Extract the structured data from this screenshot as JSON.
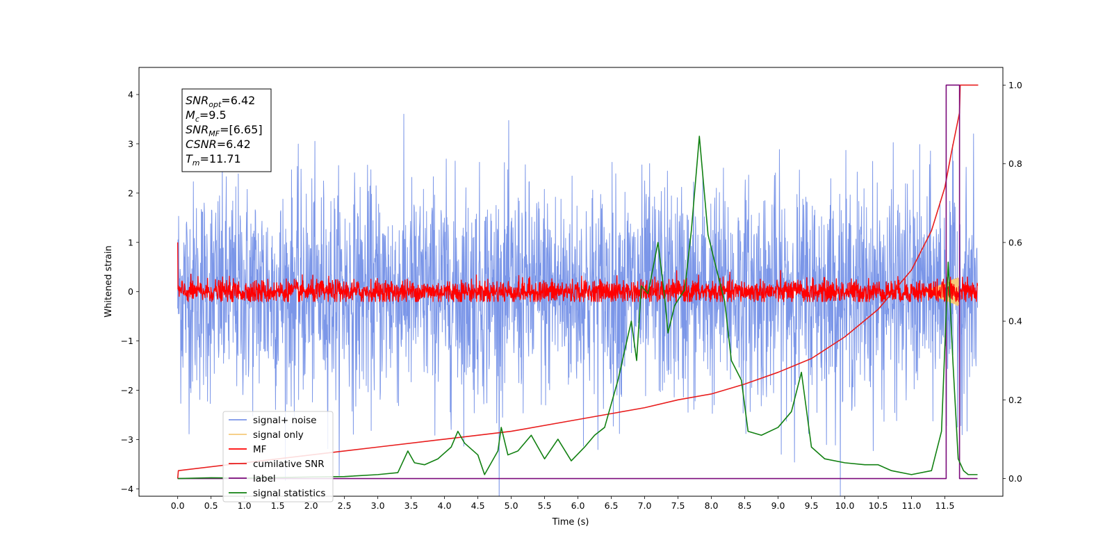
{
  "chart_data": {
    "type": "line",
    "xlabel": "Time (s)",
    "ylabel": "Whitened strain",
    "xlim": [
      -0.58,
      12.37
    ],
    "ylim": [
      -4.15,
      4.55
    ],
    "y2lim": [
      -0.045,
      1.045
    ],
    "x_ticks": [
      "0.0",
      "0.5",
      "1.0",
      "1.5",
      "2.0",
      "2.5",
      "3.0",
      "3.5",
      "4.0",
      "4.5",
      "5.0",
      "5.5",
      "6.0",
      "6.5",
      "7.0",
      "7.5",
      "8.0",
      "8.5",
      "9.0",
      "9.5",
      "10.0",
      "10.5",
      "11.0",
      "11.5"
    ],
    "y_ticks": [
      "4",
      "3",
      "2",
      "1",
      "0",
      "−1",
      "−2",
      "−3",
      "−4"
    ],
    "y2_ticks": [
      "1.0",
      "0.8",
      "0.6",
      "0.4",
      "0.2",
      "0.0"
    ],
    "legend": {
      "placement": "lower-left",
      "entries": [
        {
          "label": "signal+ noise",
          "color": "#7b96e8"
        },
        {
          "label": "signal only",
          "color": "#f5c97a"
        },
        {
          "label": "MF",
          "color": "#ff0000"
        },
        {
          "label": "cumilative SNR",
          "color": "#e81c1c"
        },
        {
          "label": "label",
          "color": "#7b0a7b"
        },
        {
          "label": "signal statistics",
          "color": "#118011"
        }
      ]
    },
    "annotation": {
      "lines": [
        {
          "main": "SNR",
          "sub": "opt",
          "rest": "=6.42"
        },
        {
          "main": "M",
          "sub": "c",
          "rest": "=9.5"
        },
        {
          "main": "SNR",
          "sub": "MF",
          "rest": "=[6.65]"
        },
        {
          "main": "CSNR",
          "sub": "",
          "rest": "=6.42"
        },
        {
          "main": "T",
          "sub": "m",
          "rest": "=11.71"
        }
      ]
    },
    "series": [
      {
        "name": "signal+ noise",
        "axis": "left",
        "style": "noise",
        "x_start": 0.0,
        "x_end": 11.99,
        "sigma": 1.1,
        "color": "#7b96e8"
      },
      {
        "name": "signal only",
        "axis": "left",
        "style": "chirp",
        "x_start": 11.2,
        "x_end": 11.72,
        "amplitude": 0.3,
        "color": "#f5c97a"
      },
      {
        "name": "MF",
        "axis": "left",
        "style": "noise",
        "x_start": 0.0,
        "x_end": 11.99,
        "sigma": 0.12,
        "color": "#ff0000"
      },
      {
        "name": "cumilative SNR",
        "axis": "right",
        "x": [
          0.0,
          0.01,
          1.0,
          2.0,
          3.0,
          4.0,
          5.0,
          6.0,
          6.5,
          7.0,
          7.5,
          8.0,
          8.5,
          9.0,
          9.5,
          10.0,
          10.5,
          11.0,
          11.3,
          11.5,
          11.6,
          11.72,
          11.73,
          12.0
        ],
        "values": [
          0.0,
          0.02,
          0.04,
          0.06,
          0.08,
          0.1,
          0.12,
          0.15,
          0.165,
          0.18,
          0.2,
          0.215,
          0.24,
          0.27,
          0.305,
          0.36,
          0.43,
          0.53,
          0.63,
          0.74,
          0.83,
          0.93,
          1.0,
          1.0
        ],
        "color": "#e81c1c"
      },
      {
        "name": "label",
        "axis": "right",
        "x": [
          0.0,
          11.52,
          11.52,
          11.72,
          11.72,
          11.99
        ],
        "values": [
          0.0,
          0.0,
          1.0,
          1.0,
          0.0,
          0.0
        ],
        "color": "#7b0a7b"
      },
      {
        "name": "signal statistics",
        "axis": "right",
        "x": [
          0.0,
          0.5,
          1.0,
          2.0,
          2.5,
          3.0,
          3.3,
          3.45,
          3.55,
          3.7,
          3.9,
          4.1,
          4.2,
          4.3,
          4.5,
          4.6,
          4.8,
          4.85,
          4.95,
          5.1,
          5.3,
          5.5,
          5.7,
          5.9,
          6.1,
          6.25,
          6.4,
          6.6,
          6.8,
          6.88,
          6.95,
          7.05,
          7.2,
          7.3,
          7.35,
          7.45,
          7.6,
          7.7,
          7.82,
          7.95,
          8.05,
          8.2,
          8.3,
          8.45,
          8.55,
          8.75,
          9.0,
          9.2,
          9.35,
          9.5,
          9.7,
          10.0,
          10.3,
          10.5,
          10.7,
          11.0,
          11.3,
          11.45,
          11.55,
          11.62,
          11.7,
          11.78,
          11.85,
          11.92,
          11.99
        ],
        "values": [
          0.0,
          0.002,
          0.001,
          0.004,
          0.005,
          0.01,
          0.015,
          0.07,
          0.04,
          0.035,
          0.05,
          0.08,
          0.12,
          0.09,
          0.06,
          0.01,
          0.07,
          0.13,
          0.06,
          0.07,
          0.11,
          0.05,
          0.1,
          0.045,
          0.08,
          0.11,
          0.13,
          0.25,
          0.4,
          0.3,
          0.49,
          0.47,
          0.6,
          0.46,
          0.37,
          0.44,
          0.48,
          0.63,
          0.87,
          0.62,
          0.55,
          0.45,
          0.3,
          0.25,
          0.12,
          0.11,
          0.13,
          0.17,
          0.27,
          0.08,
          0.05,
          0.04,
          0.035,
          0.035,
          0.02,
          0.01,
          0.02,
          0.12,
          0.55,
          0.3,
          0.05,
          0.02,
          0.01,
          0.01,
          0.01
        ],
        "color": "#118011"
      }
    ]
  }
}
